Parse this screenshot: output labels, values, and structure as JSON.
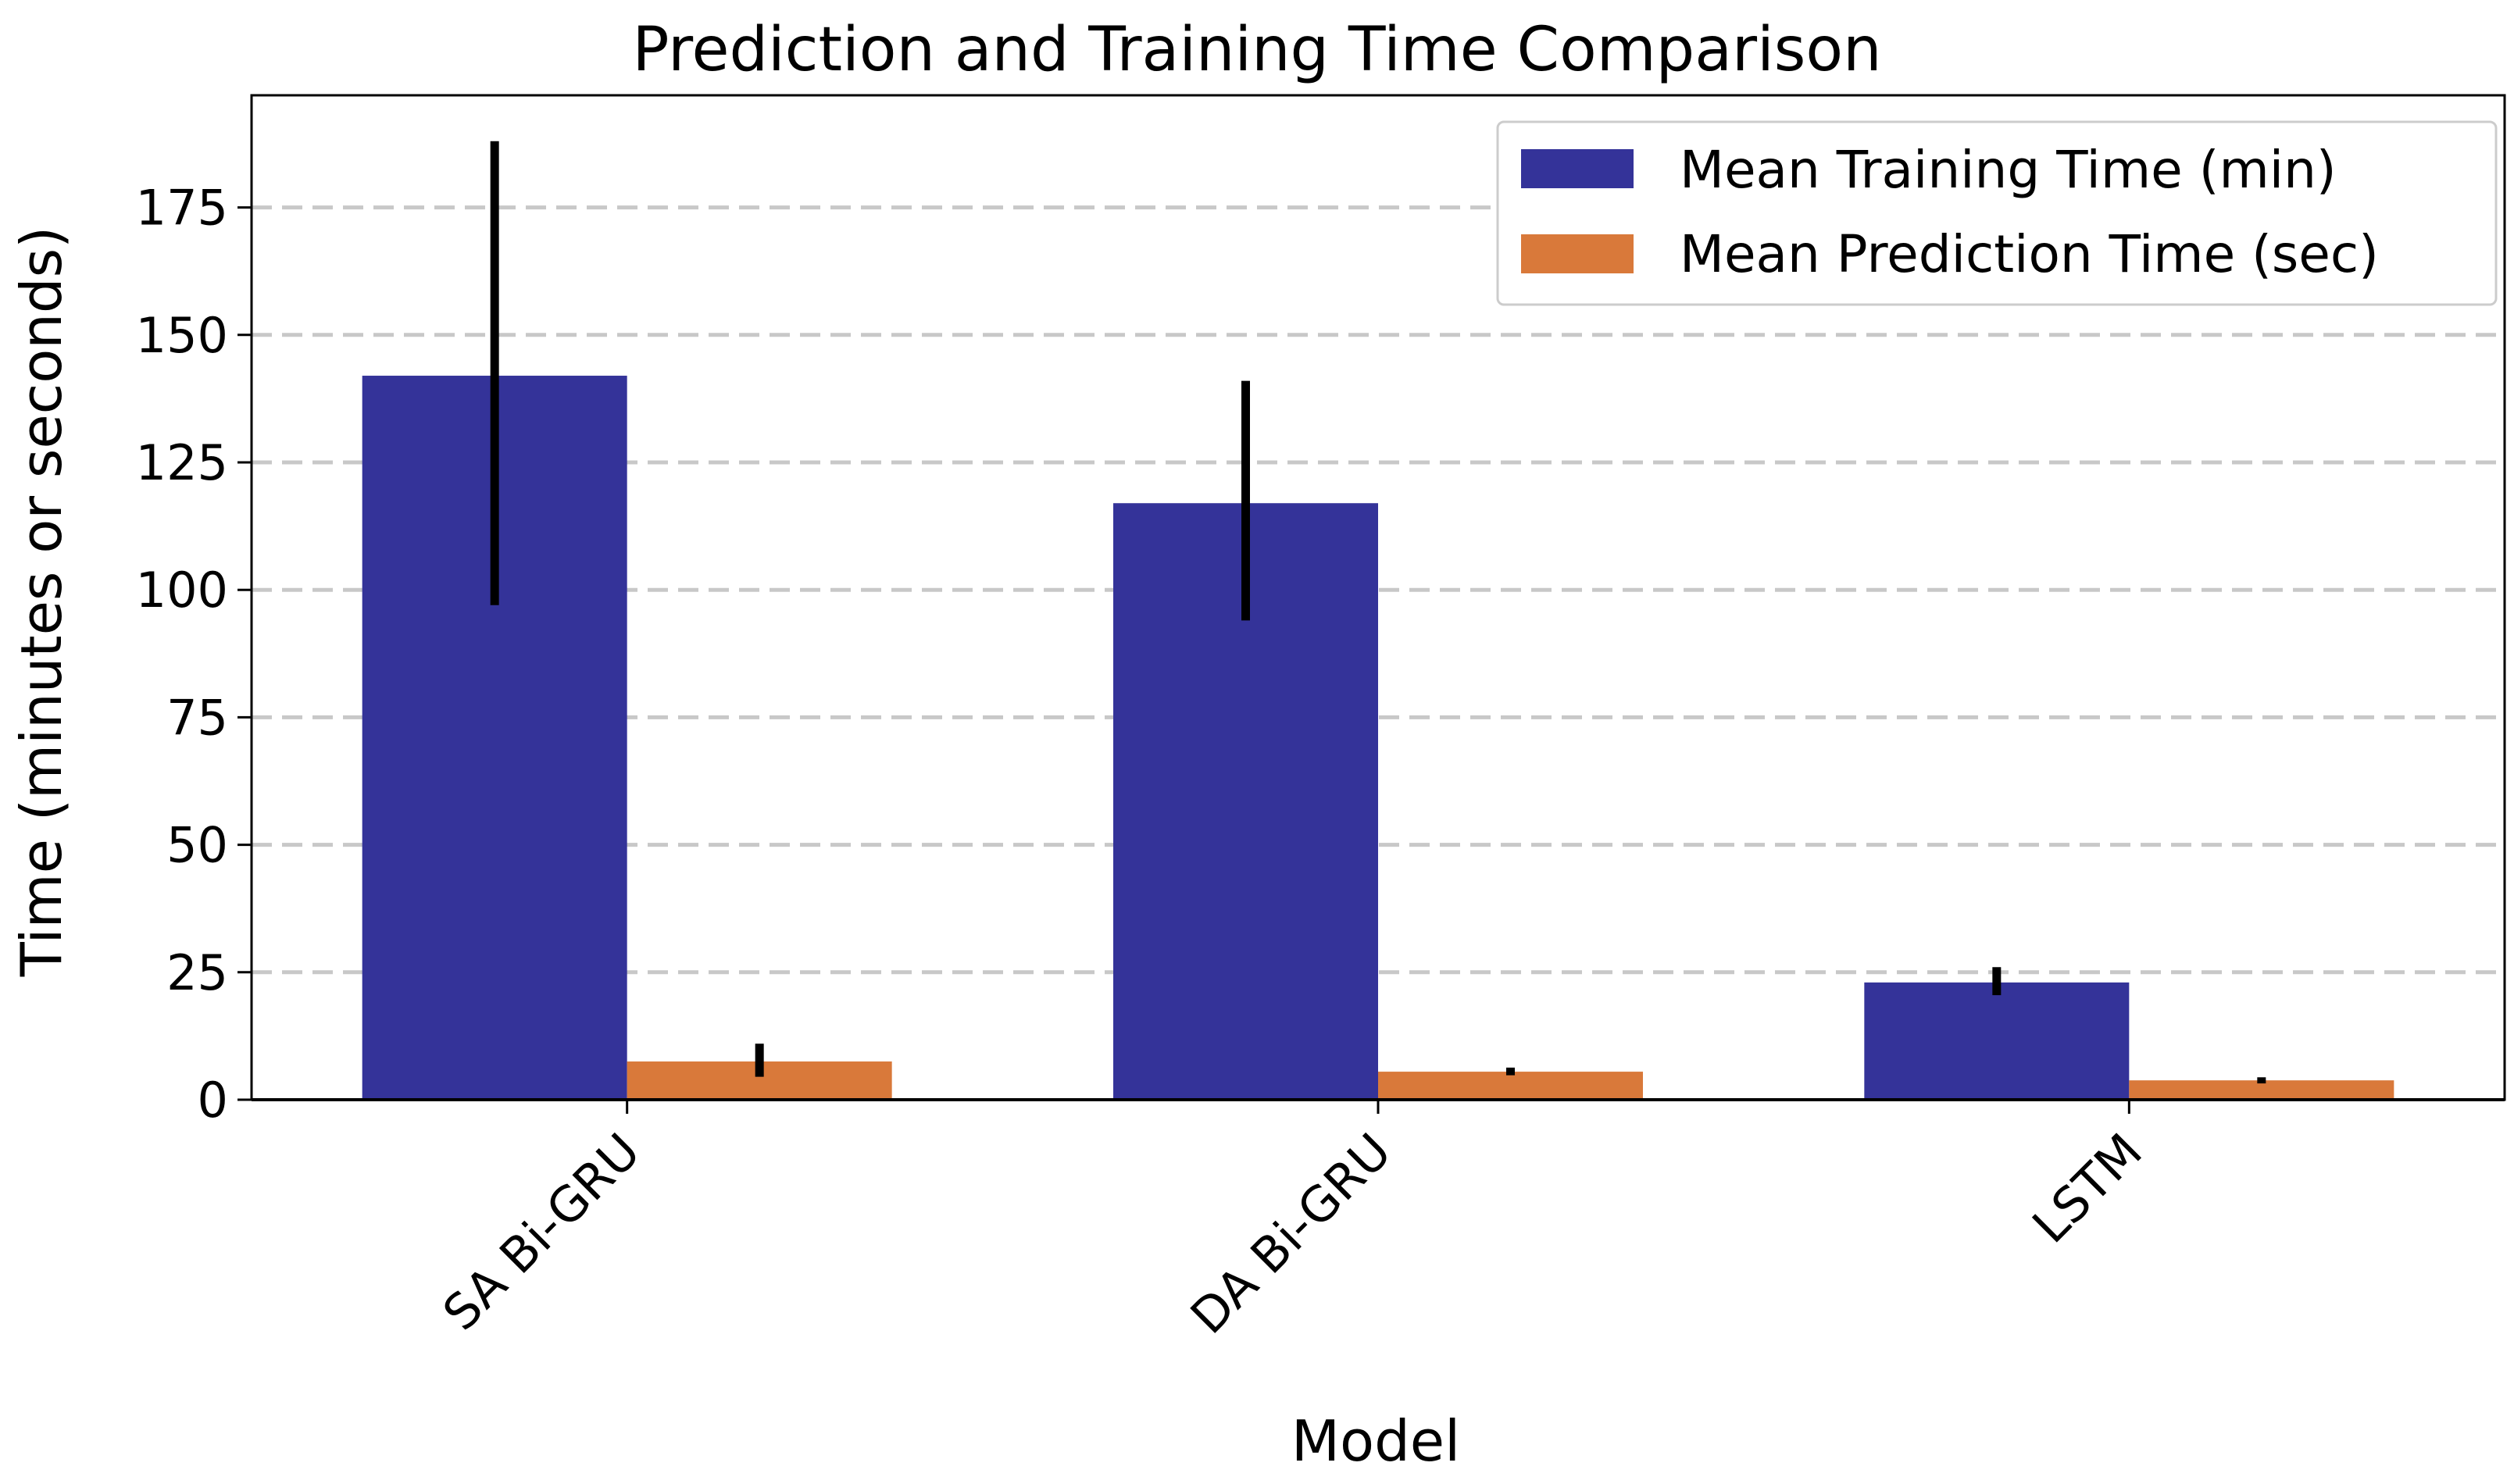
{
  "chart_data": {
    "type": "bar",
    "title": "Prediction and Training Time Comparison",
    "xlabel": "Model",
    "ylabel": "Time (minutes or seconds)",
    "categories": [
      "SA Bi-GRU",
      "DA Bi-GRU",
      "LSTM"
    ],
    "ylim": [
      0,
      197
    ],
    "yticks": [
      0,
      25,
      50,
      75,
      100,
      125,
      150,
      175
    ],
    "grid": "y-dashed",
    "legend_position": "top-right",
    "series": [
      {
        "name": "Mean Training Time (min)",
        "color": "#343399",
        "values": [
          142,
          117,
          23
        ],
        "error_low": [
          97,
          94,
          20.5
        ],
        "error_high": [
          188,
          141,
          26
        ]
      },
      {
        "name": "Mean Prediction Time (sec)",
        "color": "#d9793a",
        "values": [
          7.5,
          5.5,
          3.8
        ],
        "error_low": [
          4.5,
          4.8,
          3.2
        ],
        "error_high": [
          11,
          6.3,
          4.4
        ]
      }
    ]
  }
}
